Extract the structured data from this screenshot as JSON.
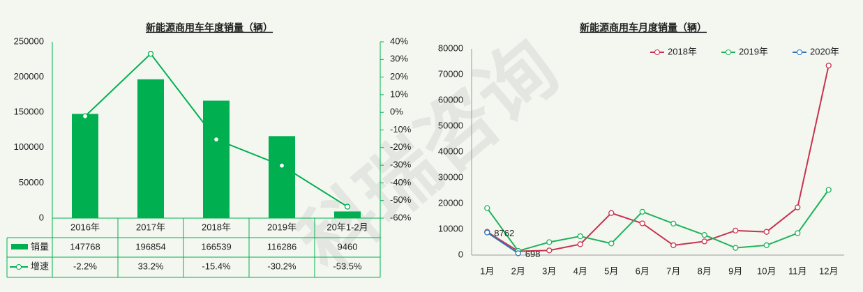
{
  "watermark": "科瑞咨询",
  "chart_data": [
    {
      "type": "bar",
      "title": "新能源商用车年度销量（辆）",
      "categories": [
        "2016年",
        "2017年",
        "2018年",
        "2019年",
        "20年1-2月"
      ],
      "series": [
        {
          "name": "销量",
          "color": "#00b050",
          "values": [
            147768,
            196854,
            166539,
            116286,
            9460
          ]
        },
        {
          "name": "增速",
          "color": "#00b050",
          "type": "line",
          "axis": "y2",
          "values": [
            -2.2,
            33.2,
            -15.4,
            -30.2,
            -53.5
          ],
          "value_labels": [
            "-2.2%",
            "33.2%",
            "-15.4%",
            "-30.2%",
            "-53.5%"
          ]
        }
      ],
      "ylim": [
        0,
        250000
      ],
      "yticks": [
        0,
        50000,
        100000,
        150000,
        200000,
        250000
      ],
      "y2lim": [
        -60,
        40
      ],
      "y2ticks": [
        {
          "value": -60,
          "label": "-60%"
        },
        {
          "value": -50,
          "label": "-50%"
        },
        {
          "value": -40,
          "label": "-40%"
        },
        {
          "value": -30,
          "label": "-30%"
        },
        {
          "value": -20,
          "label": "-20%"
        },
        {
          "value": -10,
          "label": "-10%"
        },
        {
          "value": 0,
          "label": "0%"
        },
        {
          "value": 10,
          "label": "10%"
        },
        {
          "value": 20,
          "label": "20%"
        },
        {
          "value": 30,
          "label": "30%"
        },
        {
          "value": 40,
          "label": "40%"
        }
      ],
      "data_table": true
    },
    {
      "type": "line",
      "title": "新能源商用车月度销量（辆）",
      "categories": [
        "1月",
        "2月",
        "3月",
        "4月",
        "5月",
        "6月",
        "7月",
        "8月",
        "9月",
        "10月",
        "11月",
        "12月"
      ],
      "series": [
        {
          "name": "2018年",
          "color": "#c8324f",
          "values": [
            9000,
            1500,
            1800,
            4200,
            16300,
            12300,
            3800,
            5300,
            9500,
            9000,
            18500,
            73500
          ]
        },
        {
          "name": "2019年",
          "color": "#1db35a",
          "values": [
            18200,
            1600,
            5000,
            7300,
            4500,
            16800,
            12200,
            7800,
            2800,
            3800,
            8500,
            25300
          ]
        },
        {
          "name": "2020年",
          "color": "#2e75b6",
          "values": [
            8762,
            698,
            null,
            null,
            null,
            null,
            null,
            null,
            null,
            null,
            null,
            null
          ],
          "data_labels": true
        }
      ],
      "ylim": [
        0,
        80000
      ],
      "yticks": [
        0,
        10000,
        20000,
        30000,
        40000,
        50000,
        60000,
        70000,
        80000
      ],
      "legend": "top-right"
    }
  ]
}
